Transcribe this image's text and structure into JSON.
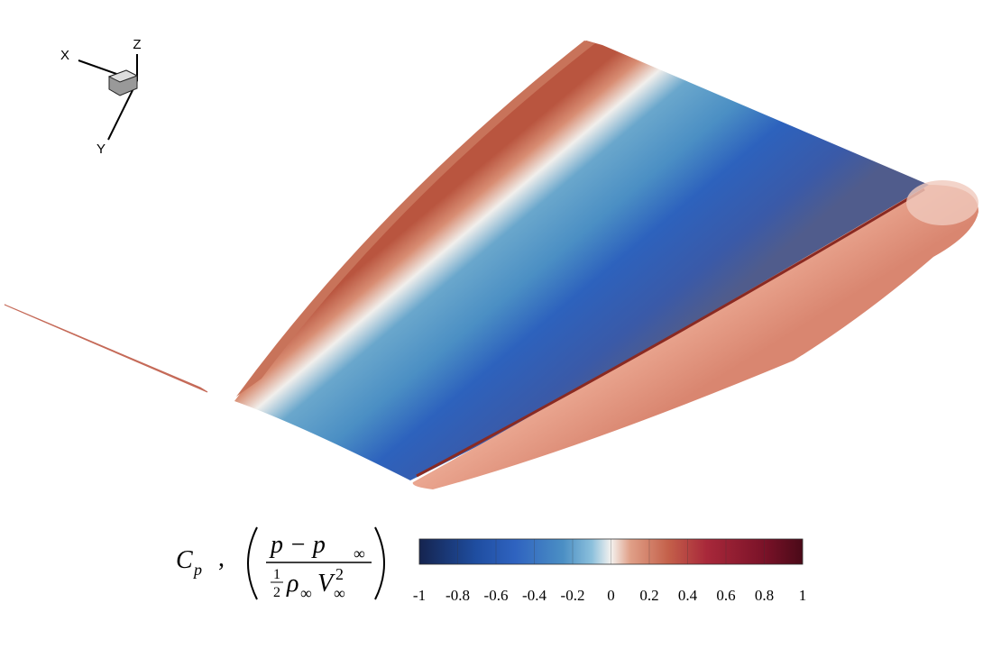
{
  "triad": {
    "x": "X",
    "y": "Y",
    "z": "Z"
  },
  "colorbar": {
    "label": {
      "symbol": "C",
      "symbol_sub": "p",
      "separator": ",",
      "numerator": "p − p",
      "numerator_sub": "∞",
      "half_top": "1",
      "half_bottom": "2",
      "rho": "ρ",
      "rho_sub": "∞",
      "v": "V",
      "v_sub": "∞",
      "v_sup": "2"
    },
    "lim": [
      -1,
      1
    ],
    "ticks": [
      -1,
      -0.8,
      -0.6,
      -0.4,
      -0.2,
      0,
      0.2,
      0.4,
      0.6,
      0.8,
      1
    ],
    "colormap": [
      {
        "value": -1,
        "color": "#15244f"
      },
      {
        "value": -0.7,
        "color": "#1f4ea1"
      },
      {
        "value": -0.5,
        "color": "#2f63c0"
      },
      {
        "value": -0.25,
        "color": "#4b8fc4"
      },
      {
        "value": -0.1,
        "color": "#8cc0dc"
      },
      {
        "value": 0,
        "color": "#f4f2ef"
      },
      {
        "value": 0.1,
        "color": "#e0a088"
      },
      {
        "value": 0.3,
        "color": "#c4604a"
      },
      {
        "value": 0.5,
        "color": "#a8283a"
      },
      {
        "value": 0.8,
        "color": "#7a1228"
      },
      {
        "value": 1,
        "color": "#4a0a18"
      }
    ]
  }
}
